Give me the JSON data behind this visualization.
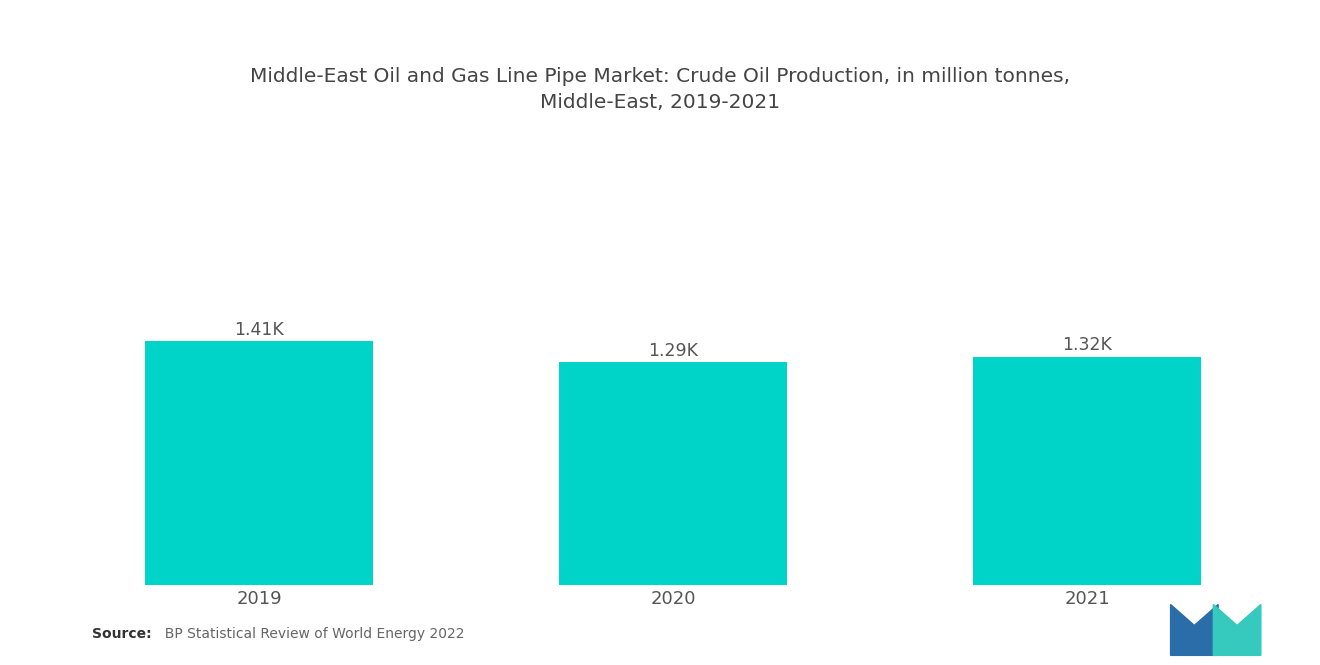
{
  "title": "Middle-East Oil and Gas Line Pipe Market: Crude Oil Production, in million tonnes,\nMiddle-East, 2019-2021",
  "categories": [
    "2019",
    "2020",
    "2021"
  ],
  "values": [
    1410,
    1290,
    1320
  ],
  "bar_labels": [
    "1.41K",
    "1.29K",
    "1.32K"
  ],
  "bar_color": "#00D4C8",
  "background_color": "#ffffff",
  "title_fontsize": 14.5,
  "bar_label_fontsize": 12.5,
  "xtick_fontsize": 13,
  "source_bold": "Source:",
  "source_rest": "  BP Statistical Review of World Energy 2022",
  "ylim": [
    0,
    2000
  ],
  "bar_width": 0.55,
  "logo_blue": "#2B6DA8",
  "logo_teal": "#36C9BE"
}
